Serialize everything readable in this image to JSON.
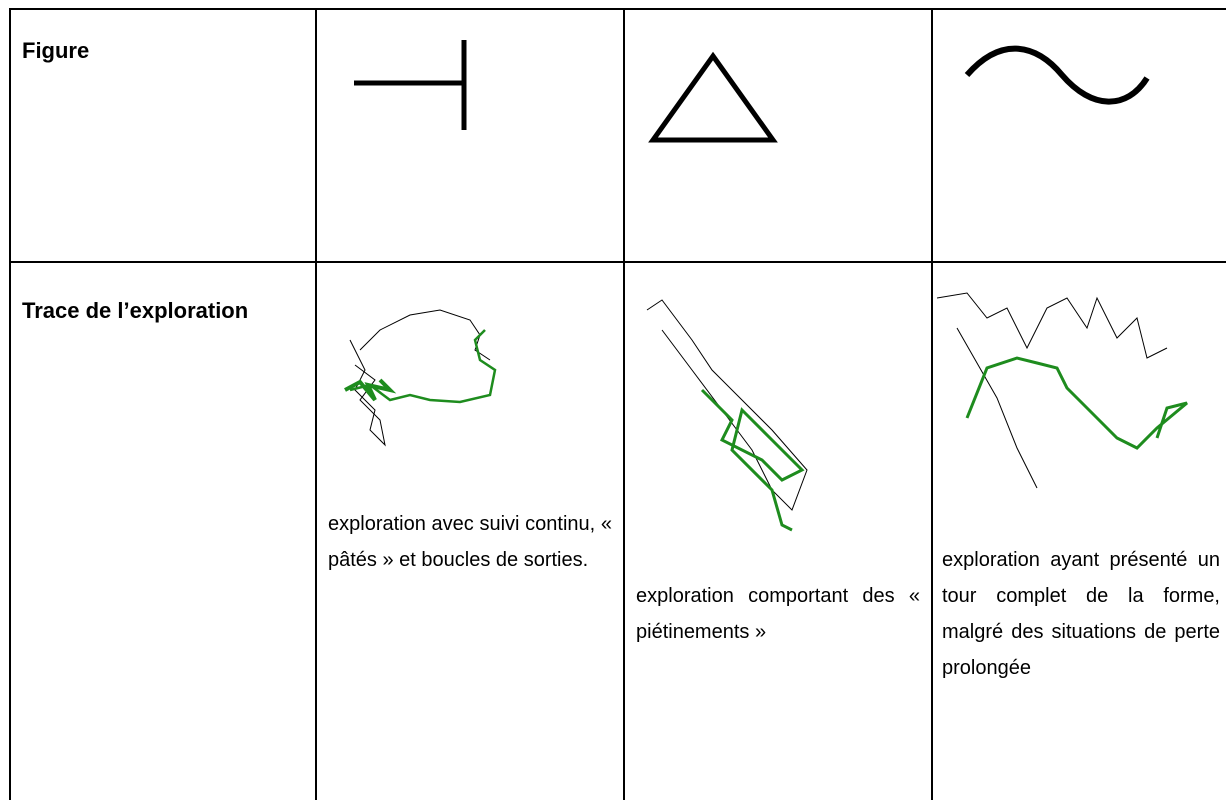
{
  "table": {
    "rows": [
      [
        "Figure"
      ],
      [
        "Trace de l’exploration",
        "exploration avec suivi continu, « pâtés » et boucles de sorties.",
        "exploration comportant des « piétinements »",
        "exploration ayant présenté un tour complet de la forme, malgré des situations de perte prolongée"
      ]
    ]
  }
}
